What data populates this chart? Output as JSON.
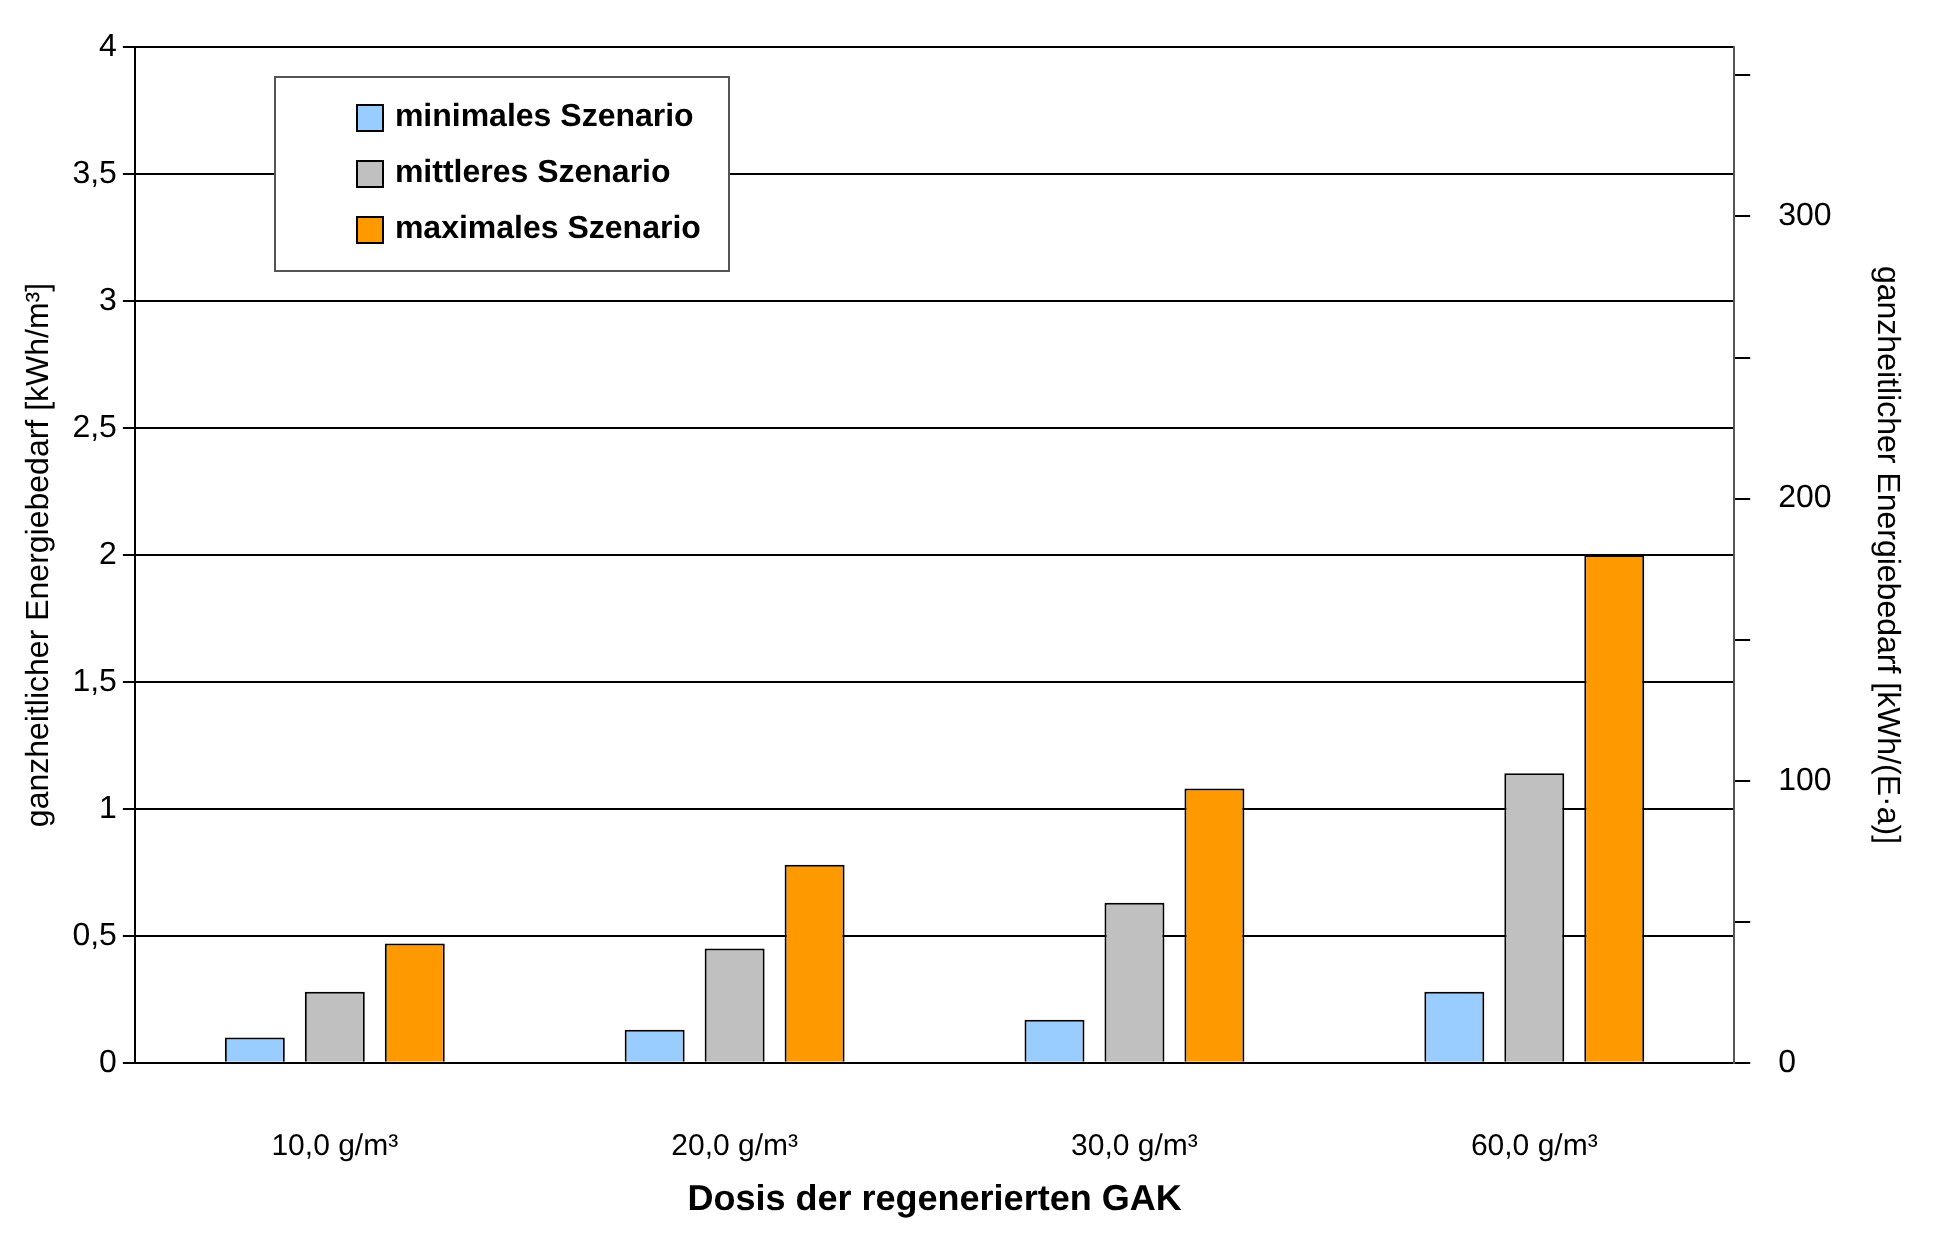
{
  "chart_data": {
    "type": "bar",
    "xlabel": "Dosis der regenerierten GAK",
    "ylabel": "ganzheitlicher Energiebedarf [kWh/m³]",
    "y2label": "ganzheitlicher Energiebedarf [kWh/(E·a)]",
    "categories": [
      "10,0 g/m³",
      "20,0 g/m³",
      "30,0 g/m³",
      "60,0 g/m³"
    ],
    "series": [
      {
        "name": "minimales Szenario",
        "color": "#99ccff",
        "values": [
          0.1,
          0.13,
          0.17,
          0.28
        ]
      },
      {
        "name": "mittleres Szenario",
        "color": "#c0c0c0",
        "values": [
          0.28,
          0.45,
          0.63,
          1.14
        ]
      },
      {
        "name": "maximales Szenario",
        "color": "#ff9900",
        "values": [
          0.47,
          0.78,
          1.08,
          2.0
        ]
      }
    ],
    "ylim": [
      0,
      4
    ],
    "yticks": [
      {
        "value": 0,
        "label": "0"
      },
      {
        "value": 0.5,
        "label": "0,5"
      },
      {
        "value": 1,
        "label": "1"
      },
      {
        "value": 1.5,
        "label": "1,5"
      },
      {
        "value": 2,
        "label": "2"
      },
      {
        "value": 2.5,
        "label": "2,5"
      },
      {
        "value": 3,
        "label": "3"
      },
      {
        "value": 3.5,
        "label": "3,5"
      },
      {
        "value": 4,
        "label": "4"
      }
    ],
    "y2lim": [
      0,
      360
    ],
    "y2ticks": [
      0,
      {
        "value": 50,
        "label": null
      },
      100,
      {
        "value": 150,
        "label": null
      },
      200,
      {
        "value": 250,
        "label": null
      },
      300,
      {
        "value": 350,
        "label": null
      }
    ],
    "grid": "y",
    "legend": "top left"
  }
}
